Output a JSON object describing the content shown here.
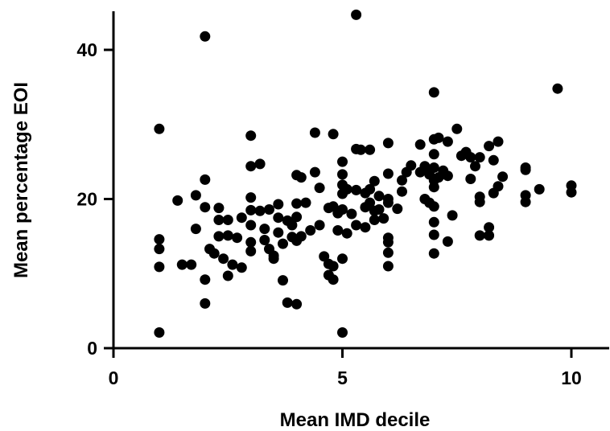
{
  "chart_data": {
    "type": "scatter",
    "xlabel": "Mean IMD decile",
    "ylabel": "Mean percentage EOI",
    "xlim": [
      0,
      10.8
    ],
    "ylim": [
      0,
      45
    ],
    "xticks": [
      0,
      5,
      10
    ],
    "yticks": [
      0,
      20,
      40
    ],
    "xtick_labels": [
      "0",
      "5",
      "10"
    ],
    "ytick_labels": [
      "0",
      "20",
      "40"
    ],
    "points": [
      [
        1.0,
        29.4
      ],
      [
        1.0,
        14.6
      ],
      [
        1.0,
        13.3
      ],
      [
        1.0,
        10.9
      ],
      [
        1.0,
        2.1
      ],
      [
        1.4,
        19.8
      ],
      [
        1.5,
        11.2
      ],
      [
        1.7,
        11.2
      ],
      [
        1.8,
        20.5
      ],
      [
        1.8,
        16.0
      ],
      [
        2.0,
        41.8
      ],
      [
        2.0,
        22.6
      ],
      [
        2.0,
        18.9
      ],
      [
        2.0,
        9.2
      ],
      [
        2.0,
        6.0
      ],
      [
        2.1,
        13.3
      ],
      [
        2.2,
        12.7
      ],
      [
        2.3,
        18.8
      ],
      [
        2.3,
        17.2
      ],
      [
        2.3,
        15.0
      ],
      [
        2.4,
        12.0
      ],
      [
        2.5,
        17.2
      ],
      [
        2.5,
        15.1
      ],
      [
        2.5,
        9.7
      ],
      [
        2.6,
        11.2
      ],
      [
        2.7,
        14.8
      ],
      [
        2.8,
        17.5
      ],
      [
        2.8,
        10.8
      ],
      [
        3.0,
        28.5
      ],
      [
        3.0,
        24.4
      ],
      [
        3.0,
        20.2
      ],
      [
        3.0,
        18.5
      ],
      [
        3.0,
        16.5
      ],
      [
        3.0,
        14.2
      ],
      [
        3.0,
        13.0
      ],
      [
        3.2,
        24.7
      ],
      [
        3.2,
        18.4
      ],
      [
        3.3,
        16.0
      ],
      [
        3.3,
        14.5
      ],
      [
        3.4,
        18.6
      ],
      [
        3.4,
        13.3
      ],
      [
        3.5,
        12.4
      ],
      [
        3.5,
        12.0
      ],
      [
        3.6,
        19.3
      ],
      [
        3.6,
        17.5
      ],
      [
        3.6,
        15.5
      ],
      [
        3.7,
        14.0
      ],
      [
        3.7,
        9.1
      ],
      [
        3.8,
        17.1
      ],
      [
        3.8,
        6.1
      ],
      [
        3.9,
        16.5
      ],
      [
        3.9,
        14.9
      ],
      [
        4.0,
        23.2
      ],
      [
        4.0,
        19.4
      ],
      [
        4.0,
        17.6
      ],
      [
        4.0,
        14.4
      ],
      [
        4.0,
        5.9
      ],
      [
        4.1,
        22.9
      ],
      [
        4.1,
        15.0
      ],
      [
        4.2,
        19.5
      ],
      [
        4.3,
        15.8
      ],
      [
        4.4,
        28.9
      ],
      [
        4.4,
        23.6
      ],
      [
        4.5,
        21.5
      ],
      [
        4.5,
        16.5
      ],
      [
        4.6,
        12.3
      ],
      [
        4.7,
        18.8
      ],
      [
        4.7,
        11.3
      ],
      [
        4.7,
        9.8
      ],
      [
        4.8,
        28.7
      ],
      [
        4.8,
        19.0
      ],
      [
        4.8,
        11.0
      ],
      [
        4.8,
        9.2
      ],
      [
        4.9,
        18.1
      ],
      [
        4.9,
        15.8
      ],
      [
        5.0,
        25.0
      ],
      [
        5.0,
        23.3
      ],
      [
        5.0,
        21.9
      ],
      [
        5.0,
        20.7
      ],
      [
        5.0,
        18.6
      ],
      [
        5.0,
        12.0
      ],
      [
        5.0,
        2.1
      ],
      [
        5.1,
        21.3
      ],
      [
        5.1,
        15.4
      ],
      [
        5.2,
        18.0
      ],
      [
        5.3,
        44.7
      ],
      [
        5.3,
        26.7
      ],
      [
        5.3,
        21.2
      ],
      [
        5.3,
        16.5
      ],
      [
        5.4,
        26.6
      ],
      [
        5.5,
        20.8
      ],
      [
        5.5,
        18.9
      ],
      [
        5.5,
        16.2
      ],
      [
        5.6,
        26.6
      ],
      [
        5.6,
        21.3
      ],
      [
        5.6,
        19.5
      ],
      [
        5.7,
        22.4
      ],
      [
        5.7,
        18.4
      ],
      [
        5.7,
        17.2
      ],
      [
        5.8,
        20.4
      ],
      [
        5.8,
        18.6
      ],
      [
        5.9,
        17.4
      ],
      [
        6.0,
        27.5
      ],
      [
        6.0,
        23.4
      ],
      [
        6.0,
        20.0
      ],
      [
        6.0,
        19.5
      ],
      [
        6.0,
        14.8
      ],
      [
        6.0,
        14.2
      ],
      [
        6.0,
        12.8
      ],
      [
        6.0,
        11.0
      ],
      [
        6.2,
        18.7
      ],
      [
        6.3,
        22.5
      ],
      [
        6.3,
        21.0
      ],
      [
        6.4,
        23.6
      ],
      [
        6.5,
        24.5
      ],
      [
        6.7,
        27.3
      ],
      [
        6.7,
        23.6
      ],
      [
        6.8,
        24.4
      ],
      [
        6.8,
        20.0
      ],
      [
        6.9,
        23.3
      ],
      [
        6.9,
        19.5
      ],
      [
        7.0,
        34.3
      ],
      [
        7.0,
        28.0
      ],
      [
        7.0,
        26.0
      ],
      [
        7.0,
        24.2
      ],
      [
        7.0,
        22.5
      ],
      [
        7.0,
        21.6
      ],
      [
        7.0,
        19.0
      ],
      [
        7.0,
        16.9
      ],
      [
        7.0,
        15.2
      ],
      [
        7.0,
        12.7
      ],
      [
        7.1,
        28.2
      ],
      [
        7.1,
        22.9
      ],
      [
        7.2,
        23.8
      ],
      [
        7.3,
        27.7
      ],
      [
        7.3,
        23.1
      ],
      [
        7.3,
        14.3
      ],
      [
        7.4,
        17.8
      ],
      [
        7.5,
        29.4
      ],
      [
        7.6,
        25.8
      ],
      [
        7.7,
        26.3
      ],
      [
        7.8,
        25.6
      ],
      [
        7.8,
        22.7
      ],
      [
        7.9,
        24.4
      ],
      [
        8.0,
        25.6
      ],
      [
        8.0,
        20.3
      ],
      [
        8.0,
        19.6
      ],
      [
        8.0,
        15.1
      ],
      [
        8.2,
        27.1
      ],
      [
        8.2,
        16.2
      ],
      [
        8.2,
        15.1
      ],
      [
        8.3,
        25.2
      ],
      [
        8.3,
        20.8
      ],
      [
        8.4,
        27.7
      ],
      [
        8.4,
        21.7
      ],
      [
        8.5,
        23.0
      ],
      [
        9.0,
        24.2
      ],
      [
        9.0,
        23.9
      ],
      [
        9.0,
        20.5
      ],
      [
        9.0,
        19.6
      ],
      [
        9.3,
        21.3
      ],
      [
        9.7,
        34.8
      ],
      [
        10.0,
        21.8
      ],
      [
        10.0,
        20.9
      ]
    ]
  }
}
